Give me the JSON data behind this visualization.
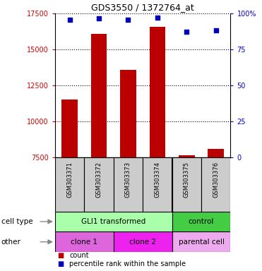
{
  "title": "GDS3550 / 1372764_at",
  "samples": [
    "GSM303371",
    "GSM303372",
    "GSM303373",
    "GSM303374",
    "GSM303375",
    "GSM303376"
  ],
  "counts": [
    11500,
    16100,
    13600,
    16600,
    7650,
    8100
  ],
  "percentile_ranks": [
    95.5,
    96.5,
    95.8,
    97.0,
    87.5,
    88.5
  ],
  "ymin": 7500,
  "ymax": 17500,
  "yticks_left": [
    7500,
    10000,
    12500,
    15000,
    17500
  ],
  "yticks_right": [
    0,
    25,
    50,
    75,
    100
  ],
  "bar_color": "#bb0000",
  "dot_color": "#0000bb",
  "cell_type_row": [
    {
      "label": "GLI1 transformed",
      "span": [
        0,
        4
      ],
      "color": "#aaffaa"
    },
    {
      "label": "control",
      "span": [
        4,
        6
      ],
      "color": "#44cc44"
    }
  ],
  "other_row": [
    {
      "label": "clone 1",
      "span": [
        0,
        2
      ],
      "color": "#dd66dd"
    },
    {
      "label": "clone 2",
      "span": [
        2,
        4
      ],
      "color": "#ee22ee"
    },
    {
      "label": "parental cell",
      "span": [
        4,
        6
      ],
      "color": "#eeaaee"
    }
  ],
  "legend_items": [
    {
      "color": "#bb0000",
      "label": "count"
    },
    {
      "color": "#0000bb",
      "label": "percentile rank within the sample"
    }
  ],
  "left_color": "#cc0000",
  "right_color": "#0000cc",
  "bar_width": 0.55,
  "sample_bg_color": "#cccccc",
  "group_separator": 3.5
}
